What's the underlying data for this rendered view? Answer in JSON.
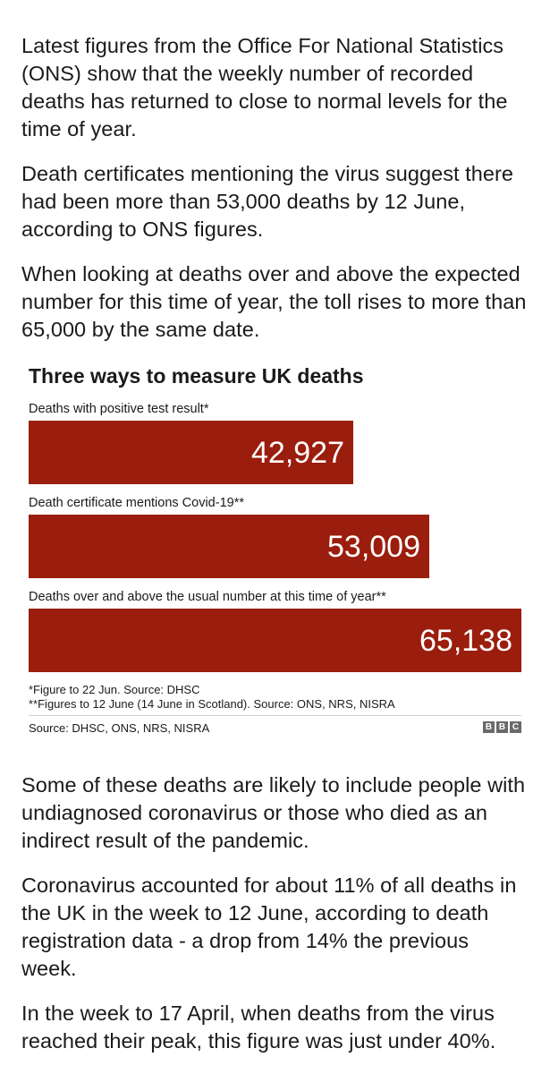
{
  "article": {
    "paragraphs_top": [
      "Latest figures from the Office For National Statistics (ONS) show that the weekly number of recorded deaths has returned to close to normal levels for the time of year.",
      "Death certificates mentioning the virus suggest there had been more than 53,000 deaths by 12 June, according to ONS figures.",
      "When looking at deaths over and above the expected number for this time of year, the toll rises to more than 65,000 by the same date."
    ],
    "paragraphs_bottom": [
      "Some of these deaths are likely to include people with undiagnosed coronavirus or those who died as an indirect result of the pandemic.",
      "Coronavirus accounted for about 11% of all deaths in the UK in the week to 12 June, according to death registration data - a drop from 14% the previous week.",
      "In the week to 17 April, when deaths from the virus reached their peak, this figure was just under 40%."
    ]
  },
  "chart_data": {
    "type": "bar",
    "orientation": "horizontal",
    "title": "Three ways to measure UK deaths",
    "categories": [
      "Deaths with positive test result*",
      "Death certificate mentions Covid-19**",
      "Deaths over and above the usual number at this time of year**"
    ],
    "values": [
      42927,
      53009,
      65138
    ],
    "value_labels": [
      "42,927",
      "53,009",
      "65,138"
    ],
    "xlim": [
      0,
      65138
    ],
    "bar_color": "#9b1d0d",
    "footnotes": [
      "*Figure to 22 Jun. Source: DHSC",
      "**Figures to 12 June (14 June in Scotland). Source: ONS, NRS, NISRA"
    ],
    "source": "Source: DHSC, ONS, NRS, NISRA",
    "brand": [
      "B",
      "B",
      "C"
    ]
  }
}
